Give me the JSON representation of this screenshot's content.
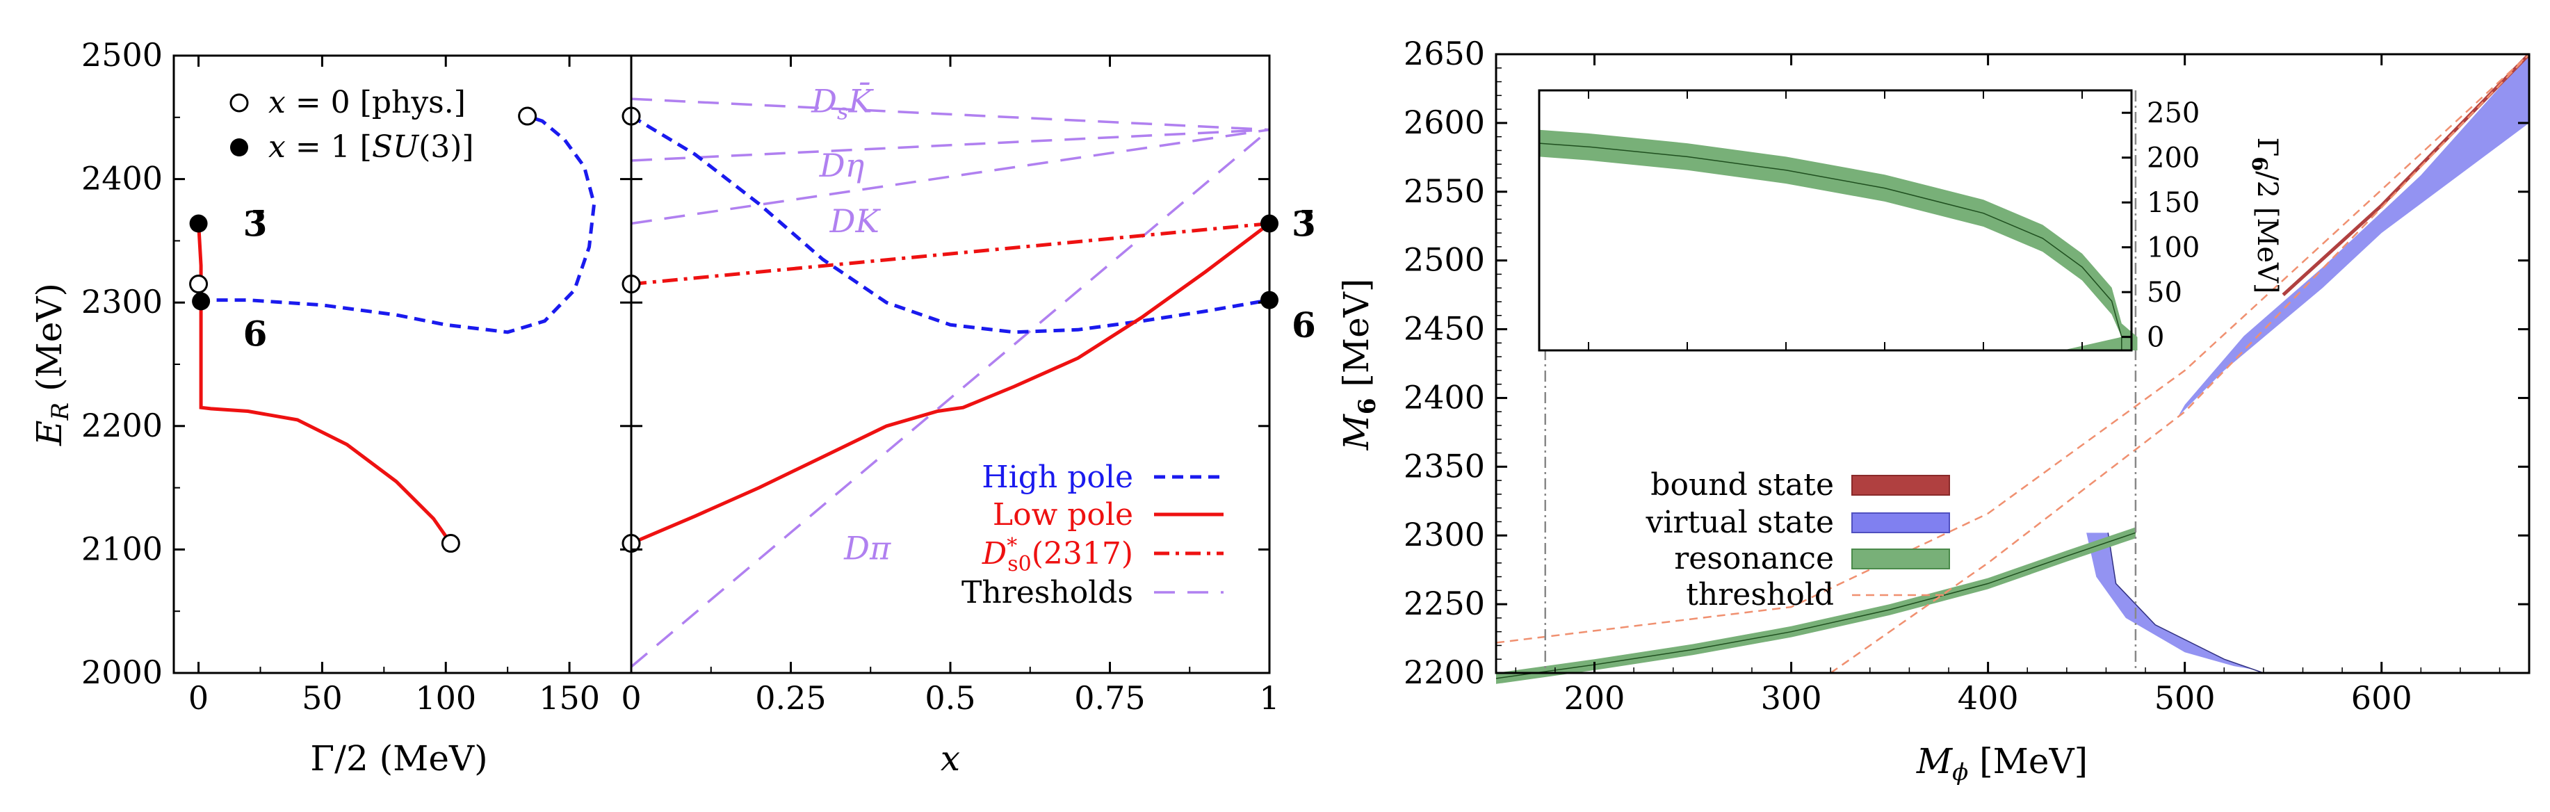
{
  "chart_data": [
    {
      "type": "line",
      "panel": "left",
      "xlabel": "Γ/2 (MeV)",
      "ylabel": "E_R (MeV)",
      "xlim": [
        -10,
        175
      ],
      "ylim": [
        2000,
        2500
      ],
      "xticks": [
        0,
        50,
        100,
        150
      ],
      "yticks": [
        2000,
        2100,
        2200,
        2300,
        2400,
        2500
      ],
      "legend": [
        "x = 0 [phys.]",
        "x = 1 [SU(3)]"
      ],
      "legend_placement": "top-left",
      "series": [
        {
          "color": "#1a1aee",
          "dash": "dashed",
          "points": [
            [
              0,
              2302
            ],
            [
              20,
              2302
            ],
            [
              50,
              2298
            ],
            [
              80,
              2290
            ],
            [
              100,
              2282
            ],
            [
              125,
              2276
            ],
            [
              140,
              2285
            ],
            [
              152,
              2310
            ],
            [
              158,
              2345
            ],
            [
              160,
              2380
            ],
            [
              156,
              2410
            ],
            [
              148,
              2432
            ],
            [
              139,
              2447
            ],
            [
              133,
              2451
            ]
          ]
        },
        {
          "color": "#ee1111",
          "dash": "solid",
          "points": [
            [
              0,
              2364
            ],
            [
              1,
              2330
            ],
            [
              1,
              2300
            ],
            [
              1,
              2260
            ],
            [
              1,
              2215
            ],
            [
              5,
              2214
            ],
            [
              20,
              2212
            ],
            [
              40,
              2205
            ],
            [
              60,
              2185
            ],
            [
              80,
              2155
            ],
            [
              95,
              2125
            ],
            [
              102,
              2105
            ]
          ]
        }
      ],
      "open_markers": [
        [
          133,
          2451
        ],
        [
          0,
          2315
        ],
        [
          102,
          2105
        ]
      ],
      "filled_markers": [
        [
          0,
          2364
        ],
        [
          1,
          2301
        ]
      ],
      "annotations": [
        {
          "text": "3̄",
          "x": 18,
          "y": 2364
        },
        {
          "text": "6",
          "x": 18,
          "y": 2275
        }
      ]
    },
    {
      "type": "line",
      "panel": "middle",
      "xlabel": "x",
      "xlim": [
        0,
        1
      ],
      "ylim": [
        2000,
        2500
      ],
      "xticks": [
        "0",
        "0.25",
        "0.5",
        "0.75",
        "1"
      ],
      "legend": [
        "High pole",
        "Low pole",
        "D*s0(2317)",
        "Thresholds"
      ],
      "legend_placement": "bottom-right",
      "series": [
        {
          "name": "High pole",
          "color": "#1a1aee",
          "dash": "dashed",
          "points": [
            [
              0,
              2451
            ],
            [
              0.1,
              2420
            ],
            [
              0.2,
              2380
            ],
            [
              0.3,
              2335
            ],
            [
              0.4,
              2300
            ],
            [
              0.5,
              2282
            ],
            [
              0.6,
              2276
            ],
            [
              0.7,
              2278
            ],
            [
              0.8,
              2285
            ],
            [
              0.9,
              2293
            ],
            [
              1,
              2302
            ]
          ]
        },
        {
          "name": "Low pole",
          "color": "#ee1111",
          "dash": "solid",
          "points": [
            [
              0,
              2105
            ],
            [
              0.1,
              2127
            ],
            [
              0.2,
              2150
            ],
            [
              0.3,
              2175
            ],
            [
              0.4,
              2200
            ],
            [
              0.48,
              2212
            ],
            [
              0.52,
              2215
            ],
            [
              0.6,
              2232
            ],
            [
              0.7,
              2255
            ],
            [
              0.8,
              2288
            ],
            [
              0.9,
              2325
            ],
            [
              1,
              2364
            ]
          ]
        },
        {
          "name": "D*s0(2317)",
          "color": "#ee1111",
          "dash": "dashdot",
          "points": [
            [
              0,
              2315
            ],
            [
              1,
              2364
            ]
          ]
        }
      ],
      "thresholds": {
        "color": "#b080f0",
        "lines": [
          {
            "label": "D_s K̄",
            "points": [
              [
                0,
                2465
              ],
              [
                1,
                2440
              ]
            ]
          },
          {
            "label": "Dη",
            "points": [
              [
                0,
                2415
              ],
              [
                1,
                2440
              ]
            ]
          },
          {
            "label": "DK",
            "points": [
              [
                0,
                2364
              ],
              [
                1,
                2440
              ]
            ]
          },
          {
            "label": "Dπ",
            "points": [
              [
                0,
                2005
              ],
              [
                1,
                2440
              ]
            ]
          }
        ]
      },
      "open_markers": [
        [
          0,
          2451
        ],
        [
          0,
          2315
        ],
        [
          0,
          2105
        ]
      ],
      "filled_markers": [
        [
          1,
          2364
        ],
        [
          1,
          2302
        ]
      ],
      "annotations": [
        {
          "text": "3̄",
          "x": 1,
          "y": 2364
        },
        {
          "text": "6",
          "x": 1,
          "y": 2282
        }
      ]
    },
    {
      "type": "area",
      "panel": "right",
      "xlabel": "M_φ [MeV]",
      "ylabel": "M_6 [MeV]",
      "xlim": [
        150,
        675
      ],
      "ylim": [
        2200,
        2650
      ],
      "xticks": [
        200,
        300,
        400,
        500,
        600
      ],
      "yticks": [
        2200,
        2250,
        2300,
        2350,
        2400,
        2450,
        2500,
        2550,
        2600,
        2650
      ],
      "legend": [
        "bound state",
        "virtual state",
        "resonance",
        "threshold"
      ],
      "legend_placement": "bottom-left",
      "colors": {
        "bound": "#b04040",
        "virtual": "#8080f0",
        "resonance": "#78b078",
        "threshold": "#f09070"
      },
      "vertical_markers": [
        175,
        475
      ],
      "bands": {
        "bound_state": [
          [
            550,
            2475
          ],
          [
            600,
            2540
          ],
          [
            675,
            2650
          ]
        ],
        "virtual_upper": [
          [
            472,
            2302
          ],
          [
            480,
            2345
          ],
          [
            500,
            2395
          ],
          [
            530,
            2445
          ],
          [
            570,
            2495
          ],
          [
            620,
            2562
          ],
          [
            675,
            2650
          ]
        ],
        "virtual_lower": [
          [
            450,
            2302
          ],
          [
            455,
            2270
          ],
          [
            470,
            2240
          ],
          [
            500,
            2215
          ],
          [
            525,
            2205
          ],
          [
            545,
            2200
          ]
        ],
        "virtual_inner": [
          [
            450,
            2302
          ],
          [
            462,
            2325
          ],
          [
            485,
            2370
          ],
          [
            520,
            2420
          ],
          [
            570,
            2480
          ]
        ],
        "virtual_center": [
          [
            461,
            2302
          ],
          [
            465,
            2265
          ],
          [
            485,
            2235
          ],
          [
            520,
            2210
          ],
          [
            540,
            2200
          ]
        ],
        "resonance": [
          [
            150,
            2196
          ],
          [
            200,
            2206
          ],
          [
            250,
            2217
          ],
          [
            300,
            2230
          ],
          [
            350,
            2246
          ],
          [
            400,
            2265
          ],
          [
            440,
            2285
          ],
          [
            475,
            2302
          ]
        ]
      },
      "threshold_lines": [
        [
          [
            150,
            2222
          ],
          [
            300,
            2248
          ],
          [
            400,
            2316
          ],
          [
            500,
            2420
          ],
          [
            675,
            2650
          ]
        ],
        [
          [
            320,
            2200
          ],
          [
            400,
            2280
          ],
          [
            500,
            2390
          ],
          [
            675,
            2650
          ]
        ]
      ],
      "inset": {
        "ylabel": "Γ_6/2 [MeV]",
        "xlim": [
          175,
          475
        ],
        "ylim": [
          -15,
          275
        ],
        "yticks": [
          0,
          50,
          100,
          150,
          200,
          250
        ],
        "band_center": [
          [
            175,
            216
          ],
          [
            200,
            212
          ],
          [
            250,
            201
          ],
          [
            300,
            186
          ],
          [
            350,
            166
          ],
          [
            400,
            138
          ],
          [
            430,
            110
          ],
          [
            450,
            78
          ],
          [
            465,
            40
          ],
          [
            470,
            0
          ]
        ],
        "band_halfwidth": 15
      }
    }
  ]
}
